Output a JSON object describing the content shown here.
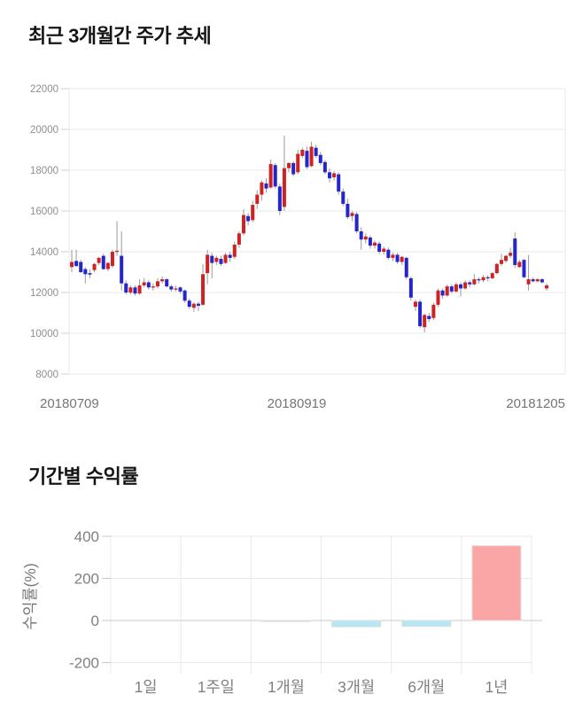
{
  "section1": {
    "title": "최근 3개월간 주가 추세"
  },
  "section2": {
    "title": "기간별 수익률"
  },
  "chart_data": [
    {
      "type": "candlestick",
      "title": "최근 3개월간 주가 추세",
      "x_tick_labels": [
        "20180709",
        "20180919",
        "20181205"
      ],
      "y_ticks": [
        22000,
        20000,
        18000,
        16000,
        14000,
        12000,
        10000,
        8000
      ],
      "ylim": [
        8000,
        22000
      ],
      "grid": true,
      "colors": {
        "up": "#cf2222",
        "down": "#2525cc",
        "wick": "#9a9a9a",
        "grid": "#e8e8e8",
        "tick": "#cfcfcf",
        "tick_label": "#8e8e8e",
        "x_label": "#757575"
      },
      "candles_ohlc": [
        [
          13250,
          14100,
          13000,
          13500
        ],
        [
          13550,
          14100,
          13250,
          13300
        ],
        [
          13500,
          13600,
          12950,
          13000
        ],
        [
          13150,
          13250,
          12450,
          12900
        ],
        [
          12950,
          13150,
          12700,
          12880
        ],
        [
          13100,
          13450,
          13000,
          13400
        ],
        [
          13450,
          13750,
          13350,
          13700
        ],
        [
          13800,
          13900,
          13100,
          13150
        ],
        [
          13150,
          13500,
          13050,
          13450
        ],
        [
          13300,
          14100,
          13200,
          14000
        ],
        [
          14000,
          15500,
          13800,
          14050
        ],
        [
          13800,
          15000,
          12100,
          12450
        ],
        [
          12450,
          12600,
          11900,
          12000
        ],
        [
          12000,
          12350,
          11900,
          12250
        ],
        [
          12250,
          12350,
          11850,
          11950
        ],
        [
          11950,
          12650,
          11900,
          12350
        ],
        [
          12350,
          12700,
          12250,
          12500
        ],
        [
          12500,
          12600,
          12150,
          12250
        ],
        [
          12250,
          12450,
          12100,
          12300
        ],
        [
          12300,
          12700,
          12200,
          12550
        ],
        [
          12550,
          12800,
          12450,
          12650
        ],
        [
          12650,
          12700,
          12250,
          12300
        ],
        [
          12300,
          12400,
          12050,
          12150
        ],
        [
          12150,
          12350,
          12050,
          12200
        ],
        [
          12250,
          12300,
          11950,
          12050
        ],
        [
          12100,
          12150,
          11500,
          11600
        ],
        [
          11600,
          11700,
          11200,
          11300
        ],
        [
          11250,
          11500,
          11050,
          11450
        ],
        [
          11450,
          11550,
          11100,
          11350
        ],
        [
          11400,
          13400,
          11350,
          12900
        ],
        [
          12950,
          14100,
          12400,
          13850
        ],
        [
          13800,
          13950,
          12700,
          13450
        ],
        [
          13500,
          13800,
          13350,
          13700
        ],
        [
          13650,
          13800,
          13300,
          13400
        ],
        [
          13450,
          13950,
          13400,
          13850
        ],
        [
          13850,
          14000,
          13500,
          13700
        ],
        [
          13750,
          14500,
          13650,
          14350
        ],
        [
          14350,
          15000,
          14200,
          14900
        ],
        [
          14900,
          16100,
          14800,
          15800
        ],
        [
          15750,
          15900,
          15300,
          15500
        ],
        [
          15550,
          16500,
          15450,
          16300
        ],
        [
          16350,
          17000,
          16100,
          16800
        ],
        [
          16800,
          17500,
          16500,
          17400
        ],
        [
          17350,
          17600,
          16900,
          17100
        ],
        [
          17150,
          18520,
          17100,
          18300
        ],
        [
          18250,
          18350,
          17100,
          17200
        ],
        [
          17200,
          17350,
          15800,
          16000
        ],
        [
          16200,
          19700,
          16000,
          18100
        ],
        [
          18100,
          18400,
          17900,
          18350
        ],
        [
          18350,
          18450,
          17700,
          17800
        ],
        [
          17900,
          19000,
          17800,
          18800
        ],
        [
          18700,
          19100,
          18600,
          19000
        ],
        [
          18950,
          19150,
          18050,
          18150
        ],
        [
          18200,
          19400,
          18150,
          19150
        ],
        [
          19100,
          19250,
          18600,
          18700
        ],
        [
          18750,
          18900,
          18250,
          18350
        ],
        [
          18400,
          18500,
          17800,
          17900
        ],
        [
          17900,
          18100,
          17400,
          17600
        ],
        [
          17650,
          17950,
          17500,
          17850
        ],
        [
          17800,
          17900,
          16800,
          16950
        ],
        [
          16950,
          17100,
          16250,
          16350
        ],
        [
          16350,
          16600,
          15600,
          15700
        ],
        [
          15750,
          16000,
          15500,
          15900
        ],
        [
          15850,
          15950,
          14900,
          15000
        ],
        [
          15000,
          15200,
          14100,
          14600
        ],
        [
          14600,
          14900,
          14400,
          14750
        ],
        [
          14700,
          14800,
          14150,
          14300
        ],
        [
          14300,
          14550,
          14150,
          14450
        ],
        [
          14400,
          14500,
          13900,
          14000
        ],
        [
          14000,
          14250,
          13850,
          14150
        ],
        [
          14100,
          14200,
          13600,
          13700
        ],
        [
          13700,
          13950,
          13550,
          13850
        ],
        [
          13850,
          13950,
          13400,
          13500
        ],
        [
          13500,
          13800,
          13350,
          13750
        ],
        [
          13700,
          13750,
          12650,
          12750
        ],
        [
          12700,
          12800,
          11600,
          11750
        ],
        [
          11300,
          11650,
          11100,
          11550
        ],
        [
          11550,
          11650,
          10250,
          10350
        ],
        [
          10300,
          10950,
          10050,
          10900
        ],
        [
          10850,
          11000,
          10550,
          10700
        ],
        [
          10750,
          11500,
          10650,
          11400
        ],
        [
          11400,
          12200,
          11300,
          12100
        ],
        [
          12100,
          12200,
          11700,
          11850
        ],
        [
          11850,
          12400,
          11800,
          12300
        ],
        [
          12300,
          12400,
          11950,
          12050
        ],
        [
          12050,
          12500,
          12000,
          12400
        ],
        [
          12400,
          12500,
          11800,
          12200
        ],
        [
          12200,
          12600,
          12150,
          12500
        ],
        [
          12500,
          12600,
          12250,
          12400
        ],
        [
          12400,
          12900,
          12350,
          12650
        ],
        [
          12650,
          12750,
          12450,
          12600
        ],
        [
          12600,
          12850,
          12500,
          12750
        ],
        [
          12750,
          12850,
          12550,
          12700
        ],
        [
          12700,
          13000,
          12650,
          12950
        ],
        [
          12950,
          13450,
          12900,
          13400
        ],
        [
          13400,
          13900,
          13300,
          13600
        ],
        [
          13550,
          13850,
          13450,
          13800
        ],
        [
          13800,
          14200,
          13700,
          13950
        ],
        [
          14650,
          14950,
          13200,
          13350
        ],
        [
          13250,
          13600,
          13200,
          13500
        ],
        [
          13600,
          13650,
          12700,
          12750
        ],
        [
          12400,
          13850,
          12100,
          12650
        ],
        [
          12650,
          12750,
          12500,
          12550
        ],
        [
          12550,
          12700,
          12500,
          12650
        ],
        [
          12650,
          12700,
          12450,
          12500
        ],
        [
          12200,
          12450,
          12100,
          12350
        ]
      ]
    },
    {
      "type": "bar",
      "title": "기간별 수익률",
      "categories": [
        "1일",
        "1주일",
        "1개월",
        "3개월",
        "6개월",
        "1년"
      ],
      "values": [
        0,
        0,
        -5,
        -30,
        -28,
        355
      ],
      "ylabel": "수익률(%)",
      "y_ticks": [
        400,
        200,
        0,
        -200
      ],
      "ylim": [
        -280,
        480
      ],
      "grid": true,
      "legend": "none",
      "colors": {
        "positive": "#fba6a6",
        "negative": "#b5e8f2",
        "bar_stroke": "#dedede",
        "grid": "#e9e9e9",
        "zero_line": "#c9c9c9",
        "tick_label": "#808080",
        "axis_label": "#7a7a7a"
      }
    }
  ]
}
